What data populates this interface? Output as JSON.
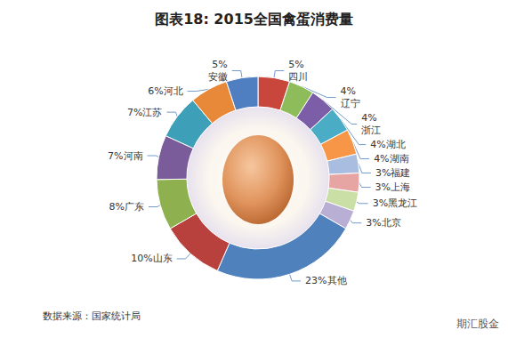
{
  "chart_data": {
    "type": "pie",
    "title": "图表18: 2015全国禽蛋消费量",
    "categories": [
      "四川",
      "辽宁",
      "浙江",
      "湖北",
      "湖南",
      "福建",
      "上海",
      "黑龙江",
      "北京",
      "其他",
      "山东",
      "广东",
      "河南",
      "江苏",
      "河北",
      "安徽"
    ],
    "values": [
      5,
      4,
      4,
      4,
      4,
      3,
      3,
      3,
      3,
      23,
      10,
      8,
      7,
      7,
      6,
      5
    ],
    "value_labels": [
      "5%",
      "4%",
      "4%",
      "4%",
      "4%",
      "3%",
      "3%",
      "3%",
      "3%",
      "23%",
      "10%",
      "8%",
      "7%",
      "7%",
      "6%",
      "5%"
    ],
    "colors": [
      "#c9463d",
      "#8fbc5a",
      "#7b5ea7",
      "#4bacc6",
      "#f79646",
      "#a9bde0",
      "#e6a5a3",
      "#c9dfa5",
      "#b9aed3",
      "#4f81bd",
      "#b8413d",
      "#8fb04f",
      "#7a5c9a",
      "#3e9fb8",
      "#e8893a",
      "#4f7fc0"
    ],
    "data_labels": true,
    "annotations": [
      "数据来源：国家统计局",
      "期汇股金"
    ]
  }
}
